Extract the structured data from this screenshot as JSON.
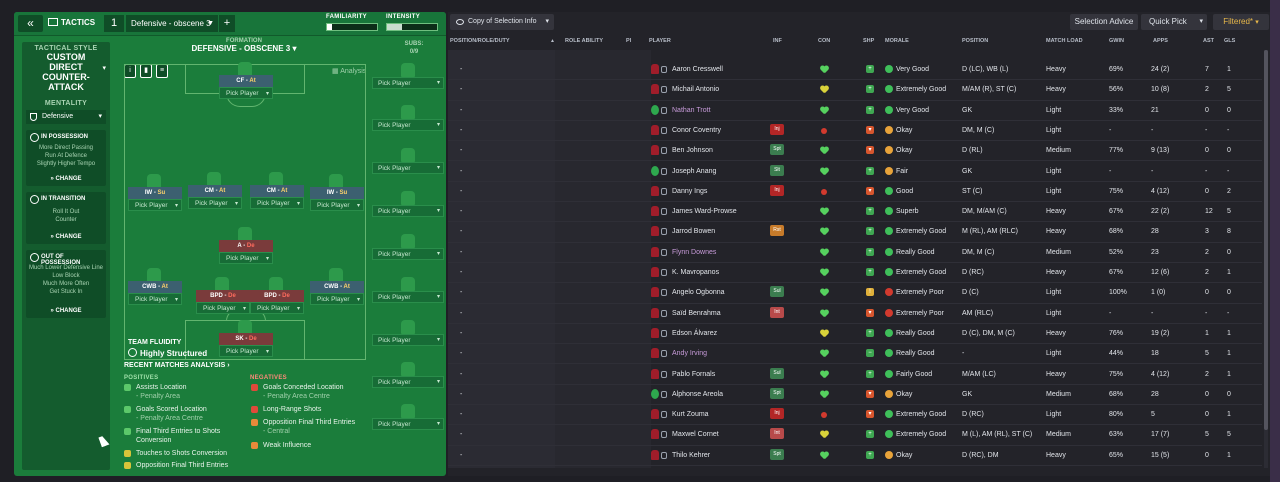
{
  "tactics": {
    "back_label": "«",
    "tab_label": "TACTICS",
    "tactic_number": "1",
    "tactic_name": "Defensive - obscene 3",
    "add_label": "+",
    "familiarity_label": "FAMILIARITY",
    "familiarity_level": 0.1,
    "intensity_label": "INTENSITY",
    "intensity_level": 0.3
  },
  "sidebar": {
    "style_heading": "TACTICAL STYLE",
    "style_name": "CUSTOM DIRECT COUNTER-ATTACK",
    "mentality_heading": "MENTALITY",
    "mentality_value": "Defensive",
    "phases": [
      {
        "title": "IN POSSESSION",
        "lines": [
          "More Direct Passing",
          "Run At Defence",
          "Slightly Higher Tempo"
        ],
        "change": "CHANGE"
      },
      {
        "title": "IN TRANSITION",
        "lines": [
          "Roll It Out",
          "Counter"
        ],
        "change": "CHANGE"
      },
      {
        "title": "OUT OF POSSESSION",
        "lines": [
          "Much Lower Defensive Line",
          "Low Block",
          "Much More Often",
          "Get Stuck In"
        ],
        "change": "CHANGE"
      }
    ]
  },
  "formation": {
    "heading": "FORMATION",
    "name": "DEFENSIVE - OBSCENE 3",
    "analysis_label": "Analysis",
    "slots": [
      {
        "role": "CF",
        "duty": "At"
      },
      {
        "role": "IW",
        "duty": "Su"
      },
      {
        "role": "CM",
        "duty": "At"
      },
      {
        "role": "CM",
        "duty": "At"
      },
      {
        "role": "IW",
        "duty": "Su"
      },
      {
        "role": "A",
        "duty": "De"
      },
      {
        "role": "CWB",
        "duty": "At"
      },
      {
        "role": "BPD",
        "duty": "De"
      },
      {
        "role": "BPD",
        "duty": "De"
      },
      {
        "role": "CWB",
        "duty": "At"
      },
      {
        "role": "SK",
        "duty": "De"
      }
    ],
    "pick_label": "Pick Player",
    "subs_heading": "SUBS:",
    "subs_count": "0/9",
    "fluidity_heading": "TEAM FLUIDITY",
    "fluidity_value": "Highly Structured"
  },
  "analysis": {
    "heading": "RECENT MATCHES ANALYSIS ›",
    "positives_heading": "POSITIVES",
    "positives": [
      {
        "text": "Assists Location",
        "sub": "- Penalty Area"
      },
      {
        "text": "Goals Scored Location",
        "sub": "- Penalty Area Centre"
      },
      {
        "text": "Final Third Entries to Shots Conversion",
        "sub": ""
      },
      {
        "text": "Touches to Shots Conversion",
        "sub": ""
      },
      {
        "text": "Opposition Final Third Entries",
        "sub": ""
      }
    ],
    "negatives_heading": "NEGATIVES",
    "negatives": [
      {
        "text": "Goals Conceded Location",
        "sub": "- Penalty Area Centre"
      },
      {
        "text": "Long-Range Shots",
        "sub": ""
      },
      {
        "text": "Opposition Final Third Entries",
        "sub": "- Central"
      },
      {
        "text": "Weak Influence",
        "sub": ""
      }
    ]
  },
  "squad": {
    "view_label": "Copy of Selection Info",
    "selection_advice": "Selection Advice",
    "quick_pick": "Quick Pick",
    "filtered": "Filtered*",
    "headers": [
      "POSITION/ROLE/DUTY",
      "ROLE ABILITY",
      "PI",
      "PLAYER",
      "INF",
      "CON",
      "SHP",
      "MORALE",
      "POSITION",
      "MATCH LOAD",
      "GWIN",
      "APPS",
      "AST",
      "GLS"
    ],
    "rows": [
      {
        "name": "Aaron Cresswell",
        "gk": false,
        "loan": false,
        "inf": "",
        "con": "green",
        "shp": "up",
        "morale": "Very Good",
        "mcol": "#3fbf5a",
        "pos": "D (LC), WB (L)",
        "load": "Heavy",
        "gwin": "69%",
        "apps": "24 (2)",
        "ast": "7",
        "gls": "1"
      },
      {
        "name": "Michail Antonio",
        "gloves": false,
        "gk": false,
        "loan": false,
        "inf": "",
        "con": "yellow",
        "shp": "up",
        "morale": "Extremely Good",
        "mcol": "#3fbf5a",
        "pos": "M/AM (R), ST (C)",
        "load": "Heavy",
        "gwin": "56%",
        "apps": "10 (8)",
        "ast": "2",
        "gls": "5"
      },
      {
        "name": "Nathan Trott",
        "gk": true,
        "loan": true,
        "inf": "",
        "con": "green",
        "shp": "up",
        "morale": "Very Good",
        "mcol": "#3fbf5a",
        "pos": "GK",
        "load": "Light",
        "gwin": "33%",
        "apps": "21",
        "ast": "0",
        "gls": "0"
      },
      {
        "name": "Conor Coventry",
        "gk": false,
        "loan": false,
        "inf": "Inj",
        "icol": "#b32626",
        "con": "red",
        "shp": "down",
        "morale": "Okay",
        "mcol": "#e8a33a",
        "pos": "DM, M (C)",
        "load": "Light",
        "gwin": "-",
        "apps": "-",
        "ast": "-",
        "gls": "-"
      },
      {
        "name": "Ben Johnson",
        "gk": false,
        "loan": false,
        "inf": "Spt",
        "icol": "#3b7d4f",
        "con": "green",
        "shp": "down",
        "morale": "Okay",
        "mcol": "#e8a33a",
        "pos": "D (RL)",
        "load": "Medium",
        "gwin": "77%",
        "apps": "9 (13)",
        "ast": "0",
        "gls": "0"
      },
      {
        "name": "Joseph Anang",
        "gk": true,
        "loan": false,
        "inf": "Slt",
        "icol": "#3b7d4f",
        "con": "green",
        "shp": "up",
        "morale": "Fair",
        "mcol": "#e8a33a",
        "pos": "GK",
        "load": "Light",
        "gwin": "-",
        "apps": "-",
        "ast": "-",
        "gls": "-"
      },
      {
        "name": "Danny Ings",
        "gk": false,
        "loan": false,
        "inf": "Inj",
        "icol": "#b32626",
        "con": "red",
        "shp": "down",
        "morale": "Good",
        "mcol": "#3fbf5a",
        "pos": "ST (C)",
        "load": "Light",
        "gwin": "75%",
        "apps": "4 (12)",
        "ast": "0",
        "gls": "2"
      },
      {
        "name": "James Ward-Prowse",
        "gk": false,
        "loan": false,
        "inf": "",
        "con": "green",
        "shp": "up",
        "morale": "Superb",
        "mcol": "#3fbf5a",
        "pos": "DM, M/AM (C)",
        "load": "Heavy",
        "gwin": "67%",
        "apps": "22 (2)",
        "ast": "12",
        "gls": "5"
      },
      {
        "name": "Jarrod Bowen",
        "gk": false,
        "loan": false,
        "inf": "Rst",
        "icol": "#c77b2a",
        "con": "green",
        "shp": "up",
        "morale": "Extremely Good",
        "mcol": "#3fbf5a",
        "pos": "M (RL), AM (RLC)",
        "load": "Heavy",
        "gwin": "68%",
        "apps": "28",
        "ast": "3",
        "gls": "8"
      },
      {
        "name": "Flynn Downes",
        "gk": false,
        "loan": true,
        "inf": "",
        "con": "green",
        "shp": "up",
        "morale": "Really Good",
        "mcol": "#3fbf5a",
        "pos": "DM, M (C)",
        "load": "Medium",
        "gwin": "52%",
        "apps": "23",
        "ast": "2",
        "gls": "0"
      },
      {
        "name": "K. Mavropanos",
        "gk": false,
        "loan": false,
        "inf": "",
        "con": "green",
        "shp": "up",
        "morale": "Extremely Good",
        "mcol": "#3fbf5a",
        "pos": "D (RC)",
        "load": "Heavy",
        "gwin": "67%",
        "apps": "12 (6)",
        "ast": "2",
        "gls": "1"
      },
      {
        "name": "Angelo Ogbonna",
        "gk": false,
        "loan": false,
        "inf": "Sul",
        "icol": "#3b7d4f",
        "con": "green",
        "shp": "warn",
        "morale": "Extremely Poor",
        "mcol": "#d23a2e",
        "pos": "D (C)",
        "load": "Light",
        "gwin": "100%",
        "apps": "1 (0)",
        "ast": "0",
        "gls": "0"
      },
      {
        "name": "Saïd Benrahma",
        "gk": false,
        "loan": false,
        "inf": "Int",
        "icol": "#b84a4a",
        "con": "green",
        "shp": "down",
        "morale": "Extremely Poor",
        "mcol": "#d23a2e",
        "pos": "AM (RLC)",
        "load": "Light",
        "gwin": "-",
        "apps": "-",
        "ast": "-",
        "gls": "-"
      },
      {
        "name": "Edson Álvarez",
        "gk": false,
        "loan": false,
        "inf": "",
        "con": "yellow",
        "shp": "up",
        "morale": "Really Good",
        "mcol": "#3fbf5a",
        "pos": "D (C), DM, M (C)",
        "load": "Heavy",
        "gwin": "76%",
        "apps": "19 (2)",
        "ast": "1",
        "gls": "1"
      },
      {
        "name": "Andy Irving",
        "gk": false,
        "loan": true,
        "inf": "",
        "con": "green",
        "shp": "flat",
        "morale": "Really Good",
        "mcol": "#3fbf5a",
        "pos": "-",
        "load": "Light",
        "gwin": "44%",
        "apps": "18",
        "ast": "5",
        "gls": "1"
      },
      {
        "name": "Pablo Fornals",
        "gk": false,
        "loan": false,
        "inf": "Sul",
        "icol": "#3b7d4f",
        "con": "green",
        "shp": "up",
        "morale": "Fairly Good",
        "mcol": "#3fbf5a",
        "pos": "M/AM (LC)",
        "load": "Heavy",
        "gwin": "75%",
        "apps": "4 (12)",
        "ast": "2",
        "gls": "1"
      },
      {
        "name": "Alphonse Areola",
        "gk": true,
        "loan": false,
        "inf": "Spt",
        "icol": "#3b7d4f",
        "con": "green",
        "shp": "down",
        "morale": "Okay",
        "mcol": "#e8a33a",
        "pos": "GK",
        "load": "Medium",
        "gwin": "68%",
        "apps": "28",
        "ast": "0",
        "gls": "0"
      },
      {
        "name": "Kurt Zouma",
        "gk": false,
        "loan": false,
        "inf": "Inj",
        "icol": "#b32626",
        "con": "red",
        "shp": "down",
        "morale": "Extremely Good",
        "mcol": "#3fbf5a",
        "pos": "D (RC)",
        "load": "Light",
        "gwin": "80%",
        "apps": "5",
        "ast": "0",
        "gls": "1"
      },
      {
        "name": "Maxwel Cornet",
        "gk": false,
        "loan": false,
        "inf": "Int",
        "icol": "#b84a4a",
        "con": "yellow",
        "shp": "up",
        "morale": "Extremely Good",
        "mcol": "#3fbf5a",
        "pos": "M (L), AM (RL), ST (C)",
        "load": "Medium",
        "gwin": "63%",
        "apps": "17 (7)",
        "ast": "5",
        "gls": "5"
      },
      {
        "name": "Thilo Kehrer",
        "gk": false,
        "loan": false,
        "inf": "Spt",
        "icol": "#3b7d4f",
        "con": "green",
        "shp": "up",
        "morale": "Okay",
        "mcol": "#e8a33a",
        "pos": "D (RC), DM",
        "load": "Heavy",
        "gwin": "65%",
        "apps": "15 (5)",
        "ast": "0",
        "gls": "1"
      }
    ]
  }
}
